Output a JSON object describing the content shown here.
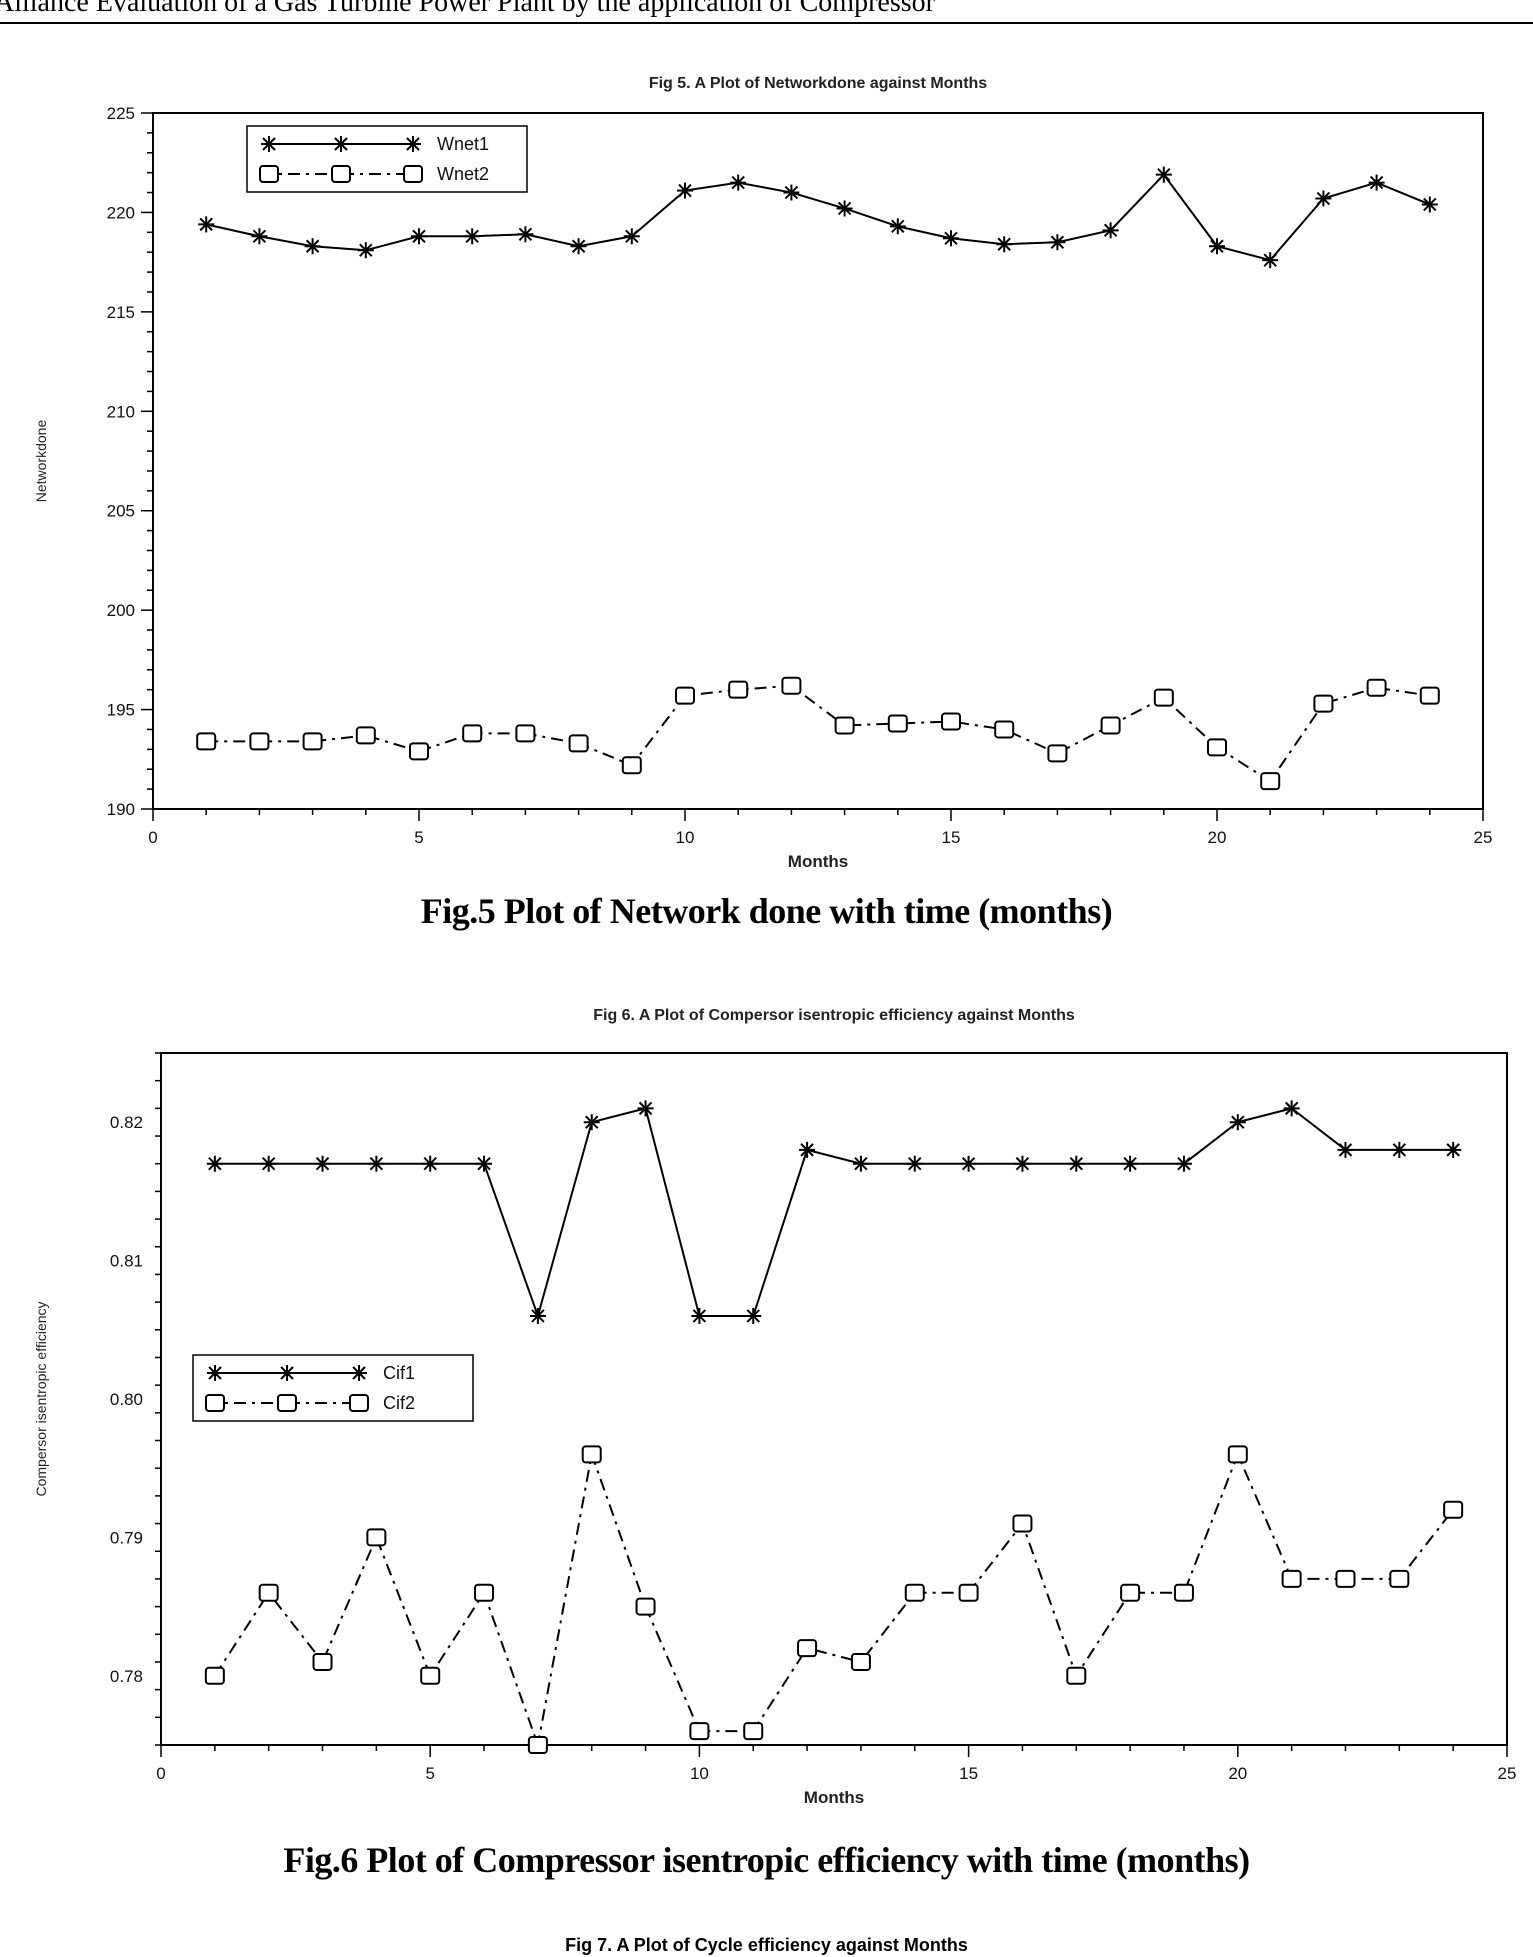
{
  "page": {
    "running_head": "Alliance Evaluation of a Gas Turbine Power Plant by the application of Compressor",
    "fig5_caption": "Fig.5 Plot of Network done with time (months)",
    "fig6_caption": "Fig.6 Plot of Compressor isentropic efficiency with time (months)",
    "fig7_title_partial": "Fig 7. A Plot of Cycle efficiency against Months"
  },
  "chart_data": [
    {
      "type": "line",
      "title": "Fig 5. A Plot of Networkdone against Months",
      "xlabel": "Months",
      "ylabel": "Networkdone",
      "xlim": [
        0,
        25
      ],
      "ylim": [
        190,
        225
      ],
      "xticks": [
        0,
        5,
        10,
        15,
        20,
        25
      ],
      "yticks": [
        190,
        195,
        200,
        205,
        210,
        215,
        220,
        225
      ],
      "grid": false,
      "legend_position": "top-left",
      "x": [
        1,
        2,
        3,
        4,
        5,
        6,
        7,
        8,
        9,
        10,
        11,
        12,
        13,
        14,
        15,
        16,
        17,
        18,
        19,
        20,
        21,
        22,
        23,
        24
      ],
      "series": [
        {
          "name": "Wnet1",
          "marker": "star",
          "linestyle": "solid",
          "values": [
            219.4,
            218.8,
            218.3,
            218.1,
            218.8,
            218.8,
            218.9,
            218.3,
            218.8,
            221.1,
            221.5,
            221.0,
            220.2,
            219.3,
            218.7,
            218.4,
            218.5,
            219.1,
            221.9,
            218.3,
            217.6,
            220.7,
            221.5,
            220.4
          ]
        },
        {
          "name": "Wnet2",
          "marker": "square",
          "linestyle": "dashdot",
          "values": [
            193.4,
            193.4,
            193.4,
            193.7,
            192.9,
            193.8,
            193.8,
            193.3,
            192.2,
            195.7,
            196.0,
            196.2,
            194.2,
            194.3,
            194.4,
            194.0,
            192.8,
            194.2,
            195.6,
            193.1,
            191.4,
            195.3,
            196.1,
            195.7
          ]
        }
      ]
    },
    {
      "type": "line",
      "title": "Fig 6. A Plot of Compersor isentropic efficiency against Months",
      "xlabel": "Months",
      "ylabel": "Compersor isentropic efficiency",
      "xlim": [
        0,
        25
      ],
      "ylim": [
        0.775,
        0.825
      ],
      "xticks": [
        0,
        5,
        10,
        15,
        20,
        25
      ],
      "yticks": [
        0.78,
        0.79,
        0.8,
        0.81,
        0.82
      ],
      "ytick_labels": [
        "0.78",
        "0.79",
        "0.80",
        "0.81",
        "0.82"
      ],
      "grid": false,
      "legend_position": "center-left",
      "x": [
        1,
        2,
        3,
        4,
        5,
        6,
        7,
        8,
        9,
        10,
        11,
        12,
        13,
        14,
        15,
        16,
        17,
        18,
        19,
        20,
        21,
        22,
        23,
        24
      ],
      "series": [
        {
          "name": "Cif1",
          "marker": "star",
          "linestyle": "solid",
          "values": [
            0.817,
            0.817,
            0.817,
            0.817,
            0.817,
            0.817,
            0.806,
            0.82,
            0.821,
            0.806,
            0.806,
            0.818,
            0.817,
            0.817,
            0.817,
            0.817,
            0.817,
            0.817,
            0.817,
            0.82,
            0.821,
            0.818,
            0.818,
            0.818
          ]
        },
        {
          "name": "Cif2",
          "marker": "square",
          "linestyle": "dashdot",
          "values": [
            0.78,
            0.786,
            0.781,
            0.79,
            0.78,
            0.786,
            0.775,
            0.796,
            0.785,
            0.776,
            0.776,
            0.782,
            0.781,
            0.786,
            0.786,
            0.791,
            0.78,
            0.786,
            0.786,
            0.796,
            0.787,
            0.787,
            0.787,
            0.792
          ]
        }
      ]
    }
  ]
}
